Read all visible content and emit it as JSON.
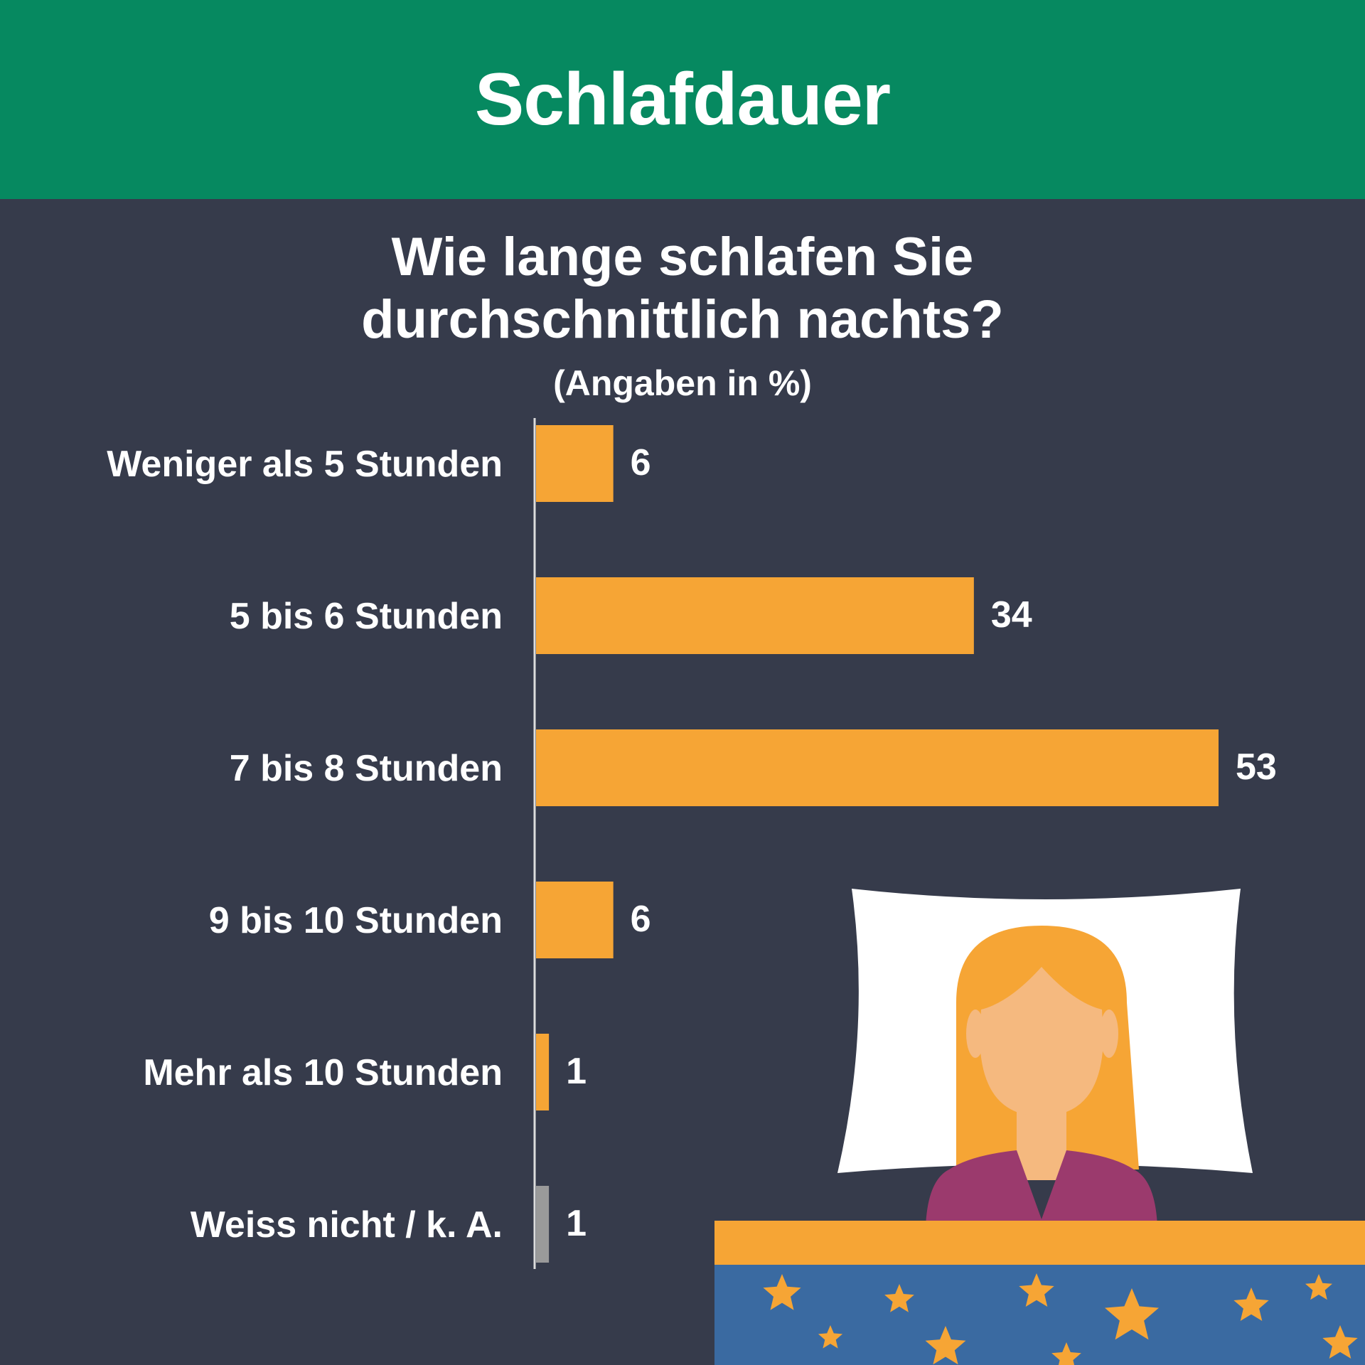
{
  "header": {
    "title": "Schlafdauer"
  },
  "chart_data": {
    "type": "bar",
    "orientation": "horizontal",
    "title_lines": [
      "Wie lange schlafen Sie",
      "durchschnittlich nachts?"
    ],
    "subtitle": "(Angaben in %)",
    "categories": [
      "Weniger als 5 Stunden",
      "5 bis 6 Stunden",
      "7 bis 8 Stunden",
      "9 bis 10 Stunden",
      "Mehr als 10 Stunden",
      "Weiss nicht / k. A."
    ],
    "values": [
      6,
      34,
      53,
      6,
      1,
      1
    ],
    "bar_colors": [
      "#f6a535",
      "#f6a535",
      "#f6a535",
      "#f6a535",
      "#f6a535",
      "#9a9a9a"
    ],
    "xlim": [
      0,
      53
    ],
    "grid": false,
    "legend": "none"
  },
  "colors": {
    "header_bg": "#068960",
    "background": "#363b4b",
    "bar": "#f6a535",
    "bar_unknown": "#9a9a9a",
    "text": "#ffffff"
  },
  "illustration": {
    "name": "sleeping-woman-illustration",
    "elements": [
      "pillow",
      "hair",
      "face",
      "pajamas",
      "blanket-with-stars"
    ]
  }
}
